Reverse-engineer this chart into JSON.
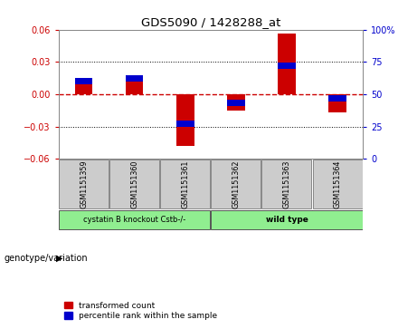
{
  "title": "GDS5090 / 1428288_at",
  "samples": [
    "GSM1151359",
    "GSM1151360",
    "GSM1151361",
    "GSM1151362",
    "GSM1151363",
    "GSM1151364"
  ],
  "red_values": [
    0.015,
    0.018,
    -0.048,
    -0.015,
    0.056,
    -0.017
  ],
  "blue_values_pct": [
    60,
    62,
    27,
    43,
    72,
    47
  ],
  "ylim_left": [
    -0.06,
    0.06
  ],
  "ylim_right": [
    0,
    100
  ],
  "yticks_left": [
    -0.06,
    -0.03,
    0,
    0.03,
    0.06
  ],
  "yticks_right": [
    0,
    25,
    50,
    75,
    100
  ],
  "groups": [
    {
      "label": "cystatin B knockout Cstb-/-",
      "color": "#90EE90"
    },
    {
      "label": "wild type",
      "color": "#90EE90"
    }
  ],
  "group_label": "genotype/variation",
  "legend_red": "transformed count",
  "legend_blue": "percentile rank within the sample",
  "bar_width": 0.35,
  "zero_line_color": "#cc0000",
  "dotted_line_color": "#000000",
  "bg_color": "#ffffff",
  "plot_bg": "#ffffff",
  "right_axis_color": "#0000cc",
  "left_axis_color": "#cc0000",
  "sample_box_color": "#cccccc",
  "bar_red": "#cc0000",
  "bar_blue": "#0000cc",
  "blue_bar_thickness": 0.006
}
